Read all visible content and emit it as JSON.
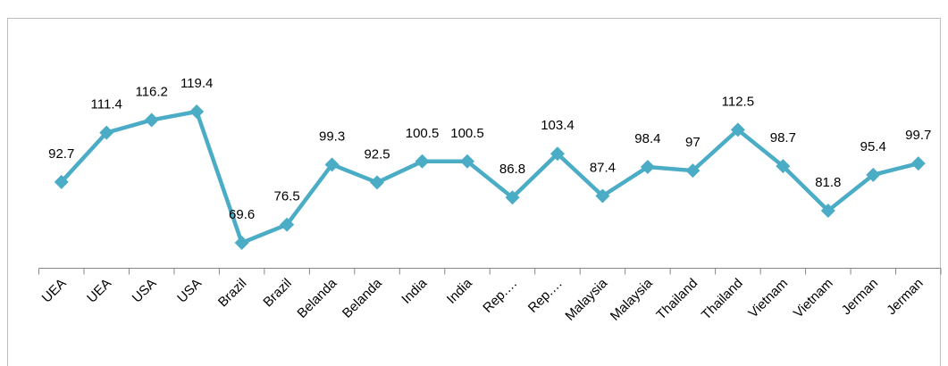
{
  "chart_data": {
    "type": "line",
    "categories": [
      "UEA",
      "UEA",
      "USA",
      "USA",
      "Brazil",
      "Brazil",
      "Belanda",
      "Belanda",
      "India",
      "India",
      "Rep.…",
      "Rep.…",
      "Malaysia",
      "Malaysia",
      "Thailand",
      "Thailand",
      "Vietnam",
      "Vietnam",
      "Jerman",
      "Jerman"
    ],
    "values": [
      92.7,
      111.4,
      116.2,
      119.4,
      69.6,
      76.5,
      99.3,
      92.5,
      100.5,
      100.5,
      86.8,
      103.4,
      87.4,
      98.4,
      97,
      112.5,
      98.7,
      81.8,
      95.4,
      99.7
    ],
    "color": "#4bacc6"
  }
}
